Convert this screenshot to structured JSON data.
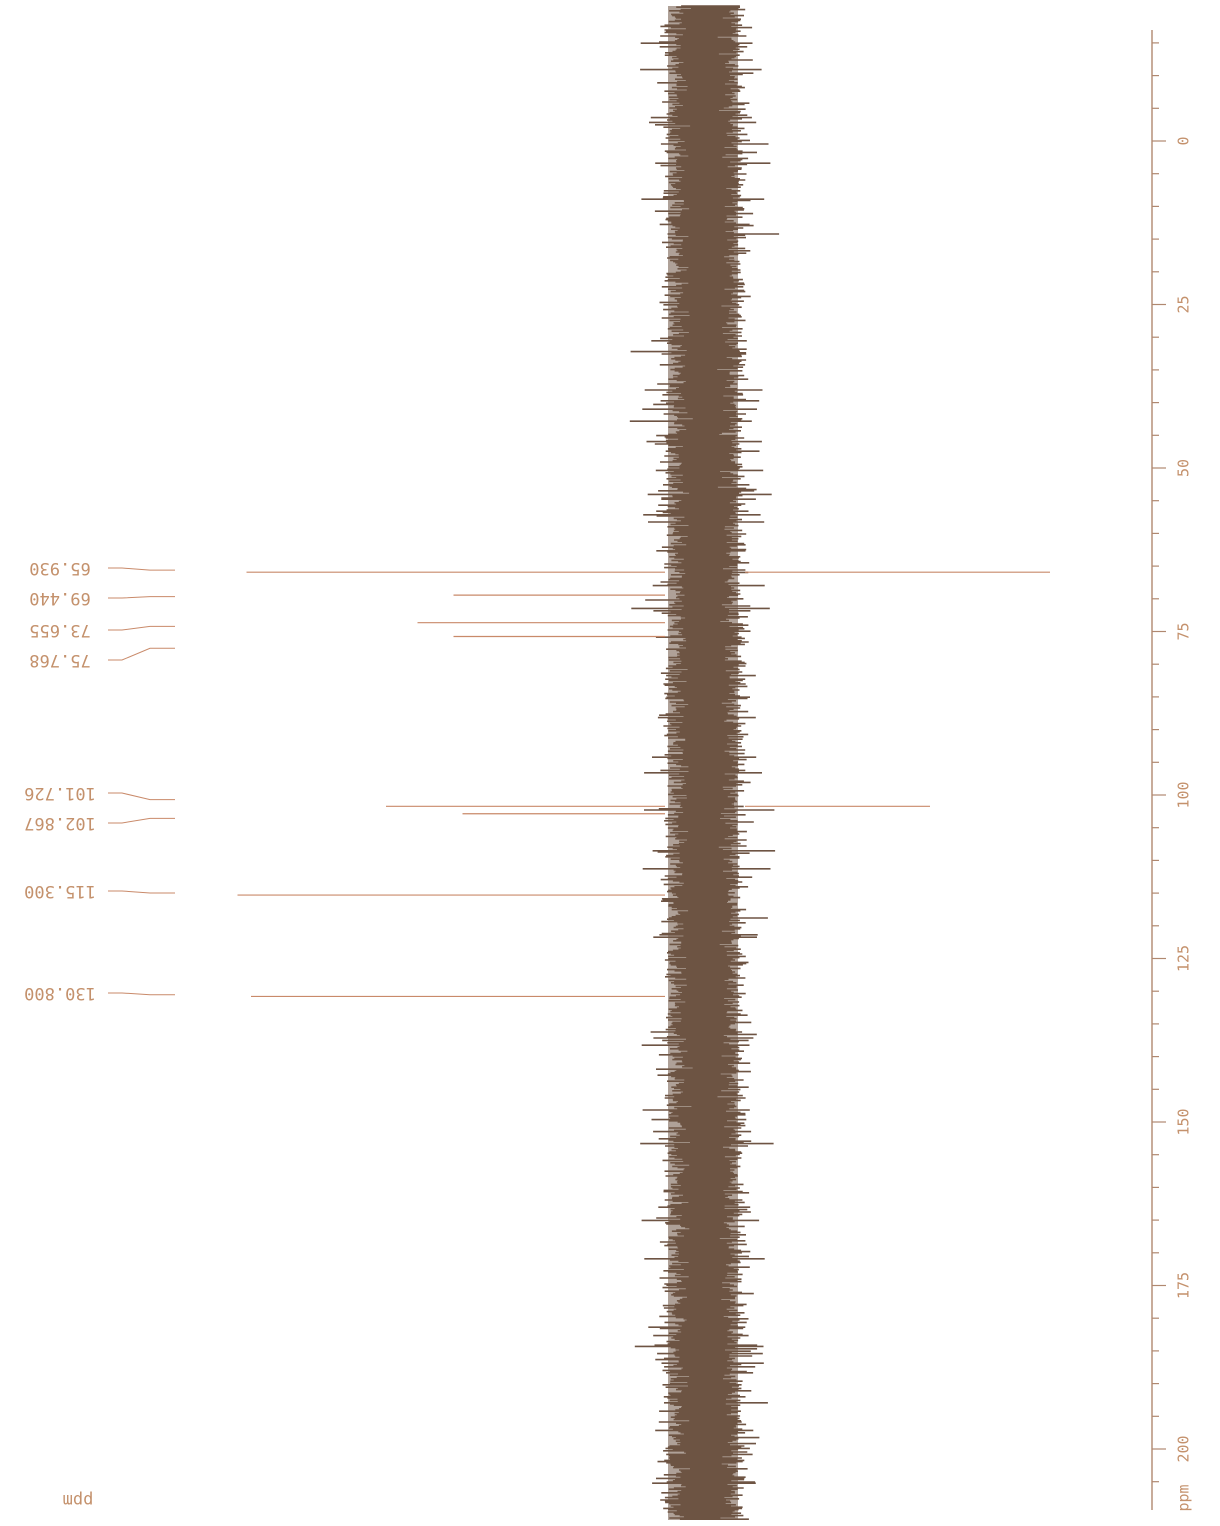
{
  "colors": {
    "noise": "#6e5443",
    "axis": "#b08870",
    "peak_line": "#c98a6a",
    "label": "#c4916c"
  },
  "chart_data": {
    "type": "line",
    "title": "",
    "xlabel": "ppm",
    "ylabel": "",
    "orientation": "rotated-180",
    "xlim": [
      -33,
      214
    ],
    "axis_ticks": [
      "0",
      "25",
      "50",
      "75",
      "100",
      "125",
      "150",
      "175",
      "200"
    ],
    "axis_unit_label": "ppm",
    "corner_unit_label": "ppm",
    "noise_band": true,
    "peaks": [
      {
        "ppm": 65.93,
        "label": "65.930",
        "rel_height": 0.93
      },
      {
        "ppm": 69.44,
        "label": "69.440",
        "rel_height": 0.47
      },
      {
        "ppm": 73.655,
        "label": "73.655",
        "rel_height": 0.55
      },
      {
        "ppm": 75.768,
        "label": "75.768",
        "rel_height": 0.47
      },
      {
        "ppm": 101.726,
        "label": "101.726",
        "rel_height": 0.62
      },
      {
        "ppm": 102.867,
        "label": "102.867",
        "rel_height": 0.45
      },
      {
        "ppm": 115.3,
        "label": "115.300",
        "rel_height": 0.95
      },
      {
        "ppm": 130.8,
        "label": "130.800",
        "rel_height": 0.92
      }
    ]
  }
}
